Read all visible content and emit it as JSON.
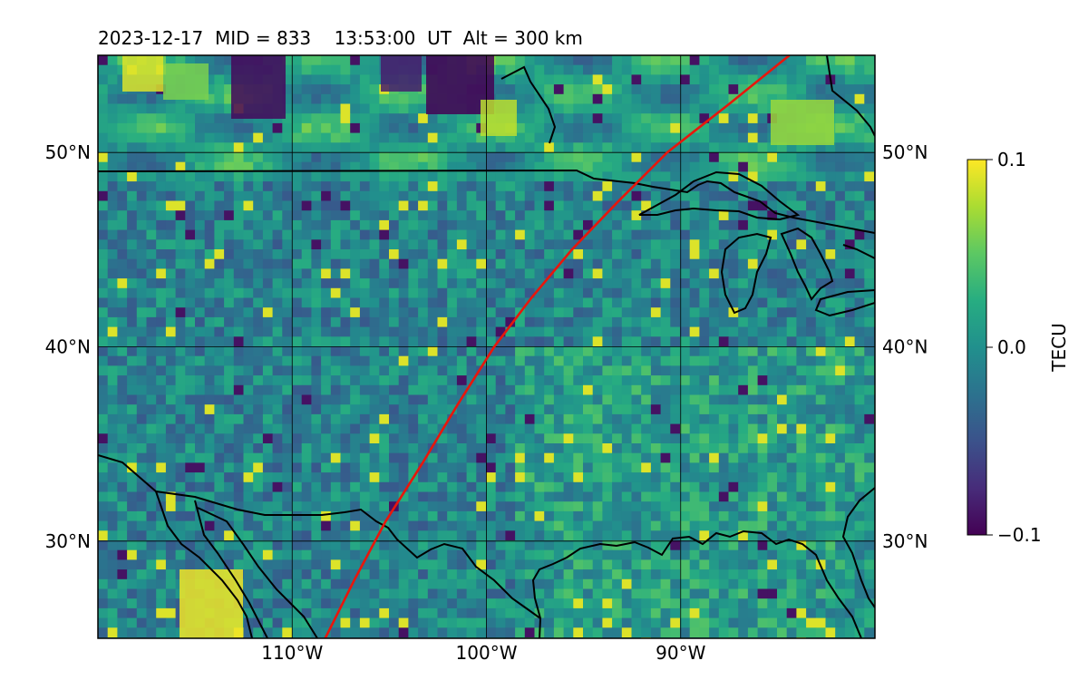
{
  "title": "2023-12-17  MID = 833    13:53:00  UT  Alt = 300 km",
  "map": {
    "projection": "PlateCarree",
    "lon_range": [
      -120,
      -80
    ],
    "lat_range": [
      25,
      55
    ],
    "gridlines": true,
    "lon_ticks": [
      -110,
      -100,
      -90
    ],
    "lon_tick_labels": [
      "110°W",
      "100°W",
      "90°W"
    ],
    "lat_ticks": [
      30,
      40,
      50
    ],
    "lat_tick_labels_left": [
      "30°N",
      "40°N",
      "50°N"
    ],
    "lat_tick_labels_right": [
      "30°N",
      "40°N",
      "50°N"
    ],
    "track_color": "#e8160c",
    "track_points": [
      [
        -108.3,
        25.0
      ],
      [
        -106.8,
        28.0
      ],
      [
        -105.2,
        31.0
      ],
      [
        -103.3,
        34.0
      ],
      [
        -101.5,
        37.0
      ],
      [
        -99.6,
        40.0
      ],
      [
        -97.7,
        42.5
      ],
      [
        -95.6,
        45.0
      ],
      [
        -93.2,
        47.5
      ],
      [
        -90.7,
        50.0
      ],
      [
        -87.5,
        52.5
      ],
      [
        -84.4,
        55.0
      ]
    ],
    "boundary_color": "#000000"
  },
  "colorbar": {
    "label": "TECU",
    "colormap": "viridis",
    "vmin": -0.1,
    "vmax": 0.1,
    "ticks": [
      "0.1",
      "0.0",
      "−0.1"
    ]
  }
}
